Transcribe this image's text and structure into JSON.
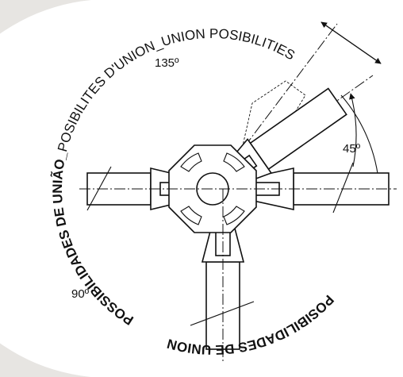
{
  "arc_text": {
    "left": "POSSIBILIDADES DE UNIÃO_",
    "top": "POSIBILITES D'UNION_UNION POSIBILITIES",
    "bottom": "POSIBILIDADES DE UNION"
  },
  "angles": {
    "a135": "135º",
    "a45": "45º",
    "a90": "90º"
  }
}
